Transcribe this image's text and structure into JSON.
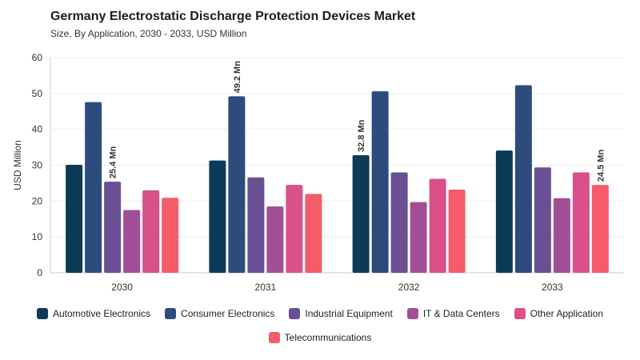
{
  "chart_data": {
    "type": "bar",
    "title": "Germany Electrostatic Discharge Protection Devices Market",
    "subtitle": "Size, By Application, 2030 - 2033, USD Million",
    "ylabel": "USD Million",
    "xlabel": "",
    "ylim": [
      0,
      60
    ],
    "yticks": [
      0,
      10,
      20,
      30,
      40,
      50,
      60
    ],
    "grid": true,
    "legend_position": "bottom",
    "categories": [
      "2030",
      "2031",
      "2032",
      "2033"
    ],
    "series": [
      {
        "name": "Automotive Electronics",
        "color": "#0d3b57",
        "values": [
          30.1,
          31.3,
          32.8,
          34.1
        ]
      },
      {
        "name": "Consumer Electronics",
        "color": "#2e4b7e",
        "values": [
          47.6,
          49.2,
          50.6,
          52.3
        ]
      },
      {
        "name": "Industrial Equipment",
        "color": "#6a4f93",
        "values": [
          25.4,
          26.6,
          28.0,
          29.4
        ]
      },
      {
        "name": "IT & Data Centers",
        "color": "#a24f97",
        "values": [
          17.5,
          18.5,
          19.7,
          20.8
        ]
      },
      {
        "name": "Other Application",
        "color": "#d9508a",
        "values": [
          23.0,
          24.5,
          26.2,
          28.0
        ]
      },
      {
        "name": "Telecommunications",
        "color": "#f45c6a",
        "values": [
          20.9,
          22.0,
          23.2,
          24.5
        ]
      }
    ],
    "annotations": [
      {
        "category": "2030",
        "series": "Industrial Equipment",
        "text": "25.4 Mn"
      },
      {
        "category": "2031",
        "series": "Consumer Electronics",
        "text": "49.2 Mn"
      },
      {
        "category": "2032",
        "series": "Automotive Electronics",
        "text": "32.8 Mn"
      },
      {
        "category": "2033",
        "series": "Telecommunications",
        "text": "24.5 Mn"
      }
    ]
  }
}
